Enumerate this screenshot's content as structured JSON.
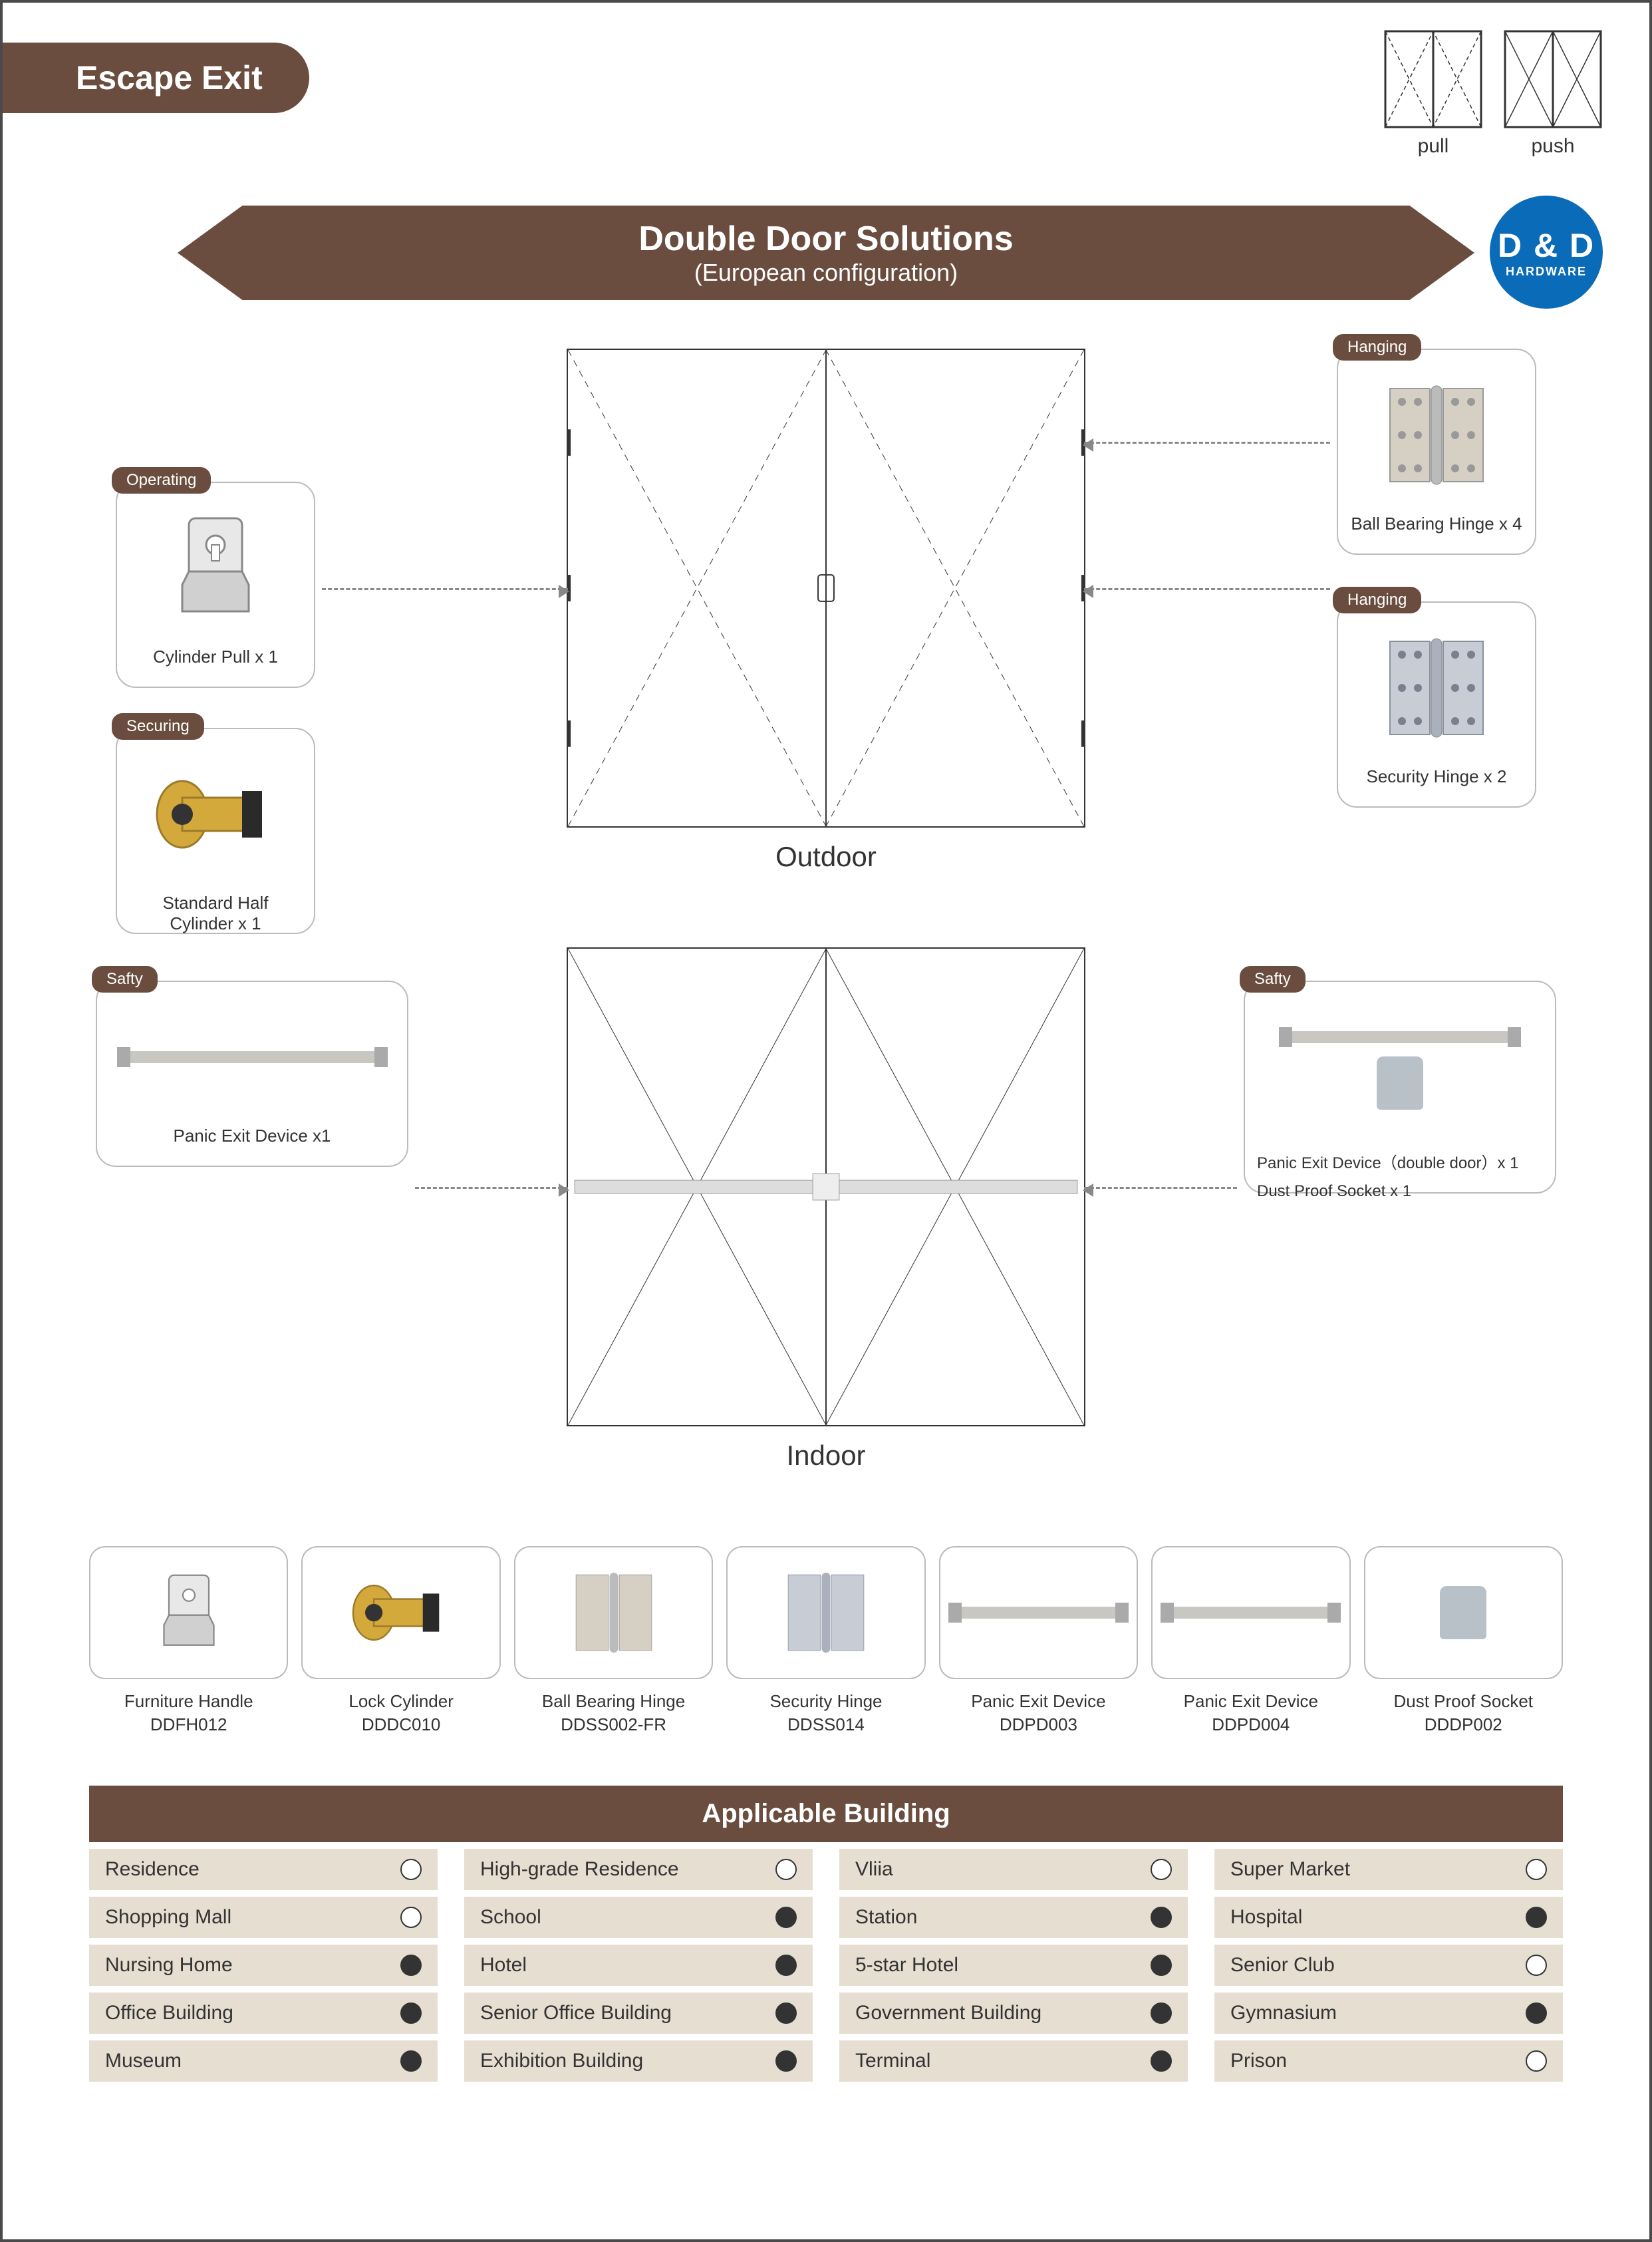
{
  "page_title": "Escape Exit",
  "top_icons": {
    "pull": "pull",
    "push": "push"
  },
  "banner": {
    "title": "Double Door Solutions",
    "subtitle": "(European configuration)"
  },
  "logo": {
    "brand": "D & D",
    "sub": "HARDWARE"
  },
  "diagrams": {
    "outdoor": "Outdoor",
    "indoor": "Indoor"
  },
  "callouts": {
    "cylpull": {
      "tag": "Operating",
      "caption": "Cylinder Pull  x 1"
    },
    "halfcyl": {
      "tag": "Securing",
      "caption": "Standard Half Cylinder x 1"
    },
    "bbhinge": {
      "tag": "Hanging",
      "caption": "Ball Bearing Hinge x 4"
    },
    "sechinge": {
      "tag": "Hanging",
      "caption": "Security Hinge x 2"
    },
    "panicL": {
      "tag": "Safty",
      "caption": "Panic Exit Device x1"
    },
    "panicR": {
      "tag": "Safty",
      "caption1": "Panic Exit Device（double door）x 1",
      "caption2": "Dust Proof Socket  x 1"
    }
  },
  "products": [
    {
      "name": "Furniture Handle",
      "sku": "DDFH012",
      "kind": "pull"
    },
    {
      "name": "Lock Cylinder",
      "sku": "DDDC010",
      "kind": "cyl"
    },
    {
      "name": "Ball Bearing Hinge",
      "sku": "DDSS002-FR",
      "kind": "hinge"
    },
    {
      "name": "Security Hinge",
      "sku": "DDSS014",
      "kind": "hinge2"
    },
    {
      "name": "Panic Exit Device",
      "sku": "DDPD003",
      "kind": "panic"
    },
    {
      "name": "Panic Exit Device",
      "sku": "DDPD004",
      "kind": "panic"
    },
    {
      "name": "Dust Proof Socket",
      "sku": "DDDP002",
      "kind": "socket"
    }
  ],
  "building": {
    "header": "Applicable Building",
    "rows": [
      [
        {
          "label": "Residence",
          "filled": false
        },
        {
          "label": "High-grade Residence",
          "filled": false
        },
        {
          "label": "Vliia",
          "filled": false
        },
        {
          "label": "Super Market",
          "filled": false
        }
      ],
      [
        {
          "label": "Shopping Mall",
          "filled": false
        },
        {
          "label": "School",
          "filled": true
        },
        {
          "label": "Station",
          "filled": true
        },
        {
          "label": "Hospital",
          "filled": true
        }
      ],
      [
        {
          "label": "Nursing Home",
          "filled": true
        },
        {
          "label": "Hotel",
          "filled": true
        },
        {
          "label": "5-star Hotel",
          "filled": true
        },
        {
          "label": "Senior Club",
          "filled": false
        }
      ],
      [
        {
          "label": "Office Building",
          "filled": true
        },
        {
          "label": "Senior Office Building",
          "filled": true
        },
        {
          "label": "Government Building",
          "filled": true
        },
        {
          "label": "Gymnasium",
          "filled": true
        }
      ],
      [
        {
          "label": "Museum",
          "filled": true
        },
        {
          "label": "Exhibition Building",
          "filled": true
        },
        {
          "label": "Terminal",
          "filled": true
        },
        {
          "label": "Prison",
          "filled": false
        }
      ]
    ]
  },
  "colors": {
    "brand": "#6a4d3e",
    "logo_bg": "#0a6bb8",
    "cell_bg": "#e6ded1"
  }
}
